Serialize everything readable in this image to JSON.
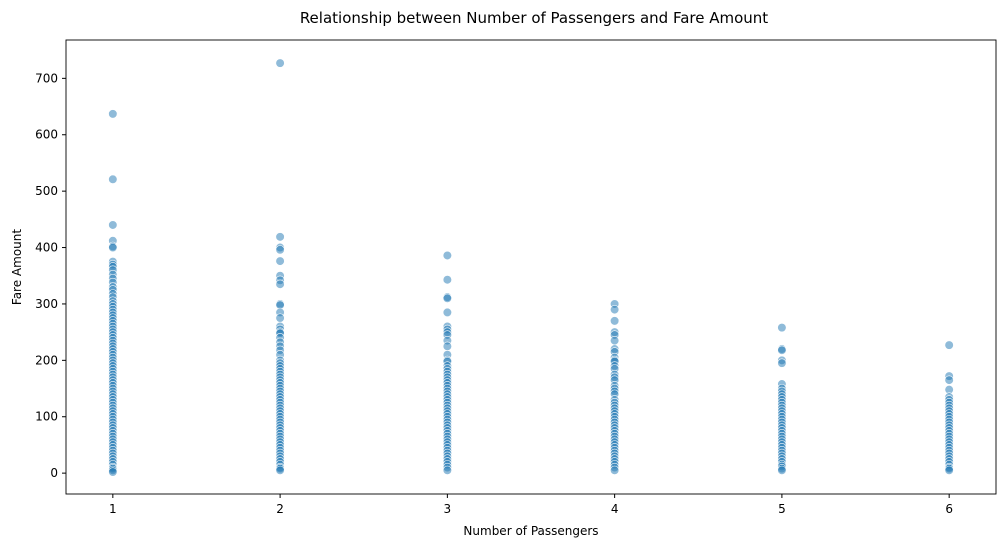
{
  "chart_data": {
    "type": "scatter",
    "title": "Relationship between Number of Passengers and Fare Amount",
    "xlabel": "Number of Passengers",
    "ylabel": "Fare Amount",
    "xlim": [
      0.72,
      6.28
    ],
    "ylim": [
      -37,
      768
    ],
    "x_ticks": [
      1,
      2,
      3,
      4,
      5,
      6
    ],
    "y_ticks": [
      0,
      100,
      200,
      300,
      400,
      500,
      600,
      700
    ],
    "grid": false,
    "point_color": "#1f77b4",
    "point_opacity": 0.5,
    "series": [
      {
        "x": 1,
        "y": [
          637,
          521,
          440,
          412,
          402,
          400,
          375,
          370,
          366,
          360,
          352,
          345,
          338,
          330,
          325,
          318,
          312,
          305,
          300,
          295,
          290,
          285,
          280,
          275,
          270,
          265,
          260,
          255,
          250,
          245,
          240,
          235,
          230,
          225,
          220,
          215,
          210,
          205,
          200,
          195,
          190,
          185,
          180,
          175,
          170,
          165,
          160,
          155,
          150,
          145,
          140,
          135,
          130,
          125,
          120,
          115,
          110,
          105,
          100,
          95,
          90,
          85,
          80,
          75,
          70,
          65,
          60,
          55,
          50,
          45,
          40,
          35,
          30,
          25,
          20,
          15,
          10,
          8,
          5,
          2
        ]
      },
      {
        "x": 2,
        "y": [
          727,
          419,
          400,
          396,
          376,
          350,
          342,
          335,
          300,
          298,
          285,
          275,
          260,
          255,
          250,
          248,
          240,
          232,
          225,
          218,
          210,
          200,
          195,
          190,
          185,
          180,
          175,
          170,
          165,
          160,
          155,
          150,
          145,
          140,
          135,
          130,
          125,
          120,
          115,
          110,
          105,
          100,
          95,
          90,
          85,
          80,
          75,
          70,
          65,
          60,
          55,
          50,
          45,
          40,
          35,
          30,
          25,
          20,
          15,
          10,
          8,
          5
        ]
      },
      {
        "x": 3,
        "y": [
          386,
          343,
          312,
          310,
          285,
          260,
          255,
          250,
          245,
          235,
          225,
          210,
          200,
          198,
          190,
          185,
          180,
          175,
          170,
          165,
          160,
          155,
          150,
          145,
          140,
          135,
          130,
          125,
          120,
          115,
          110,
          105,
          100,
          95,
          90,
          85,
          80,
          75,
          70,
          65,
          60,
          55,
          50,
          45,
          40,
          35,
          30,
          25,
          20,
          15,
          10,
          5
        ]
      },
      {
        "x": 4,
        "y": [
          300,
          290,
          270,
          250,
          245,
          235,
          220,
          215,
          205,
          200,
          198,
          190,
          185,
          175,
          170,
          165,
          155,
          150,
          145,
          140,
          130,
          125,
          120,
          115,
          110,
          105,
          100,
          95,
          90,
          85,
          80,
          75,
          70,
          65,
          60,
          55,
          50,
          45,
          40,
          35,
          30,
          25,
          20,
          15,
          10,
          5
        ]
      },
      {
        "x": 5,
        "y": [
          258,
          220,
          218,
          200,
          195,
          158,
          150,
          145,
          140,
          135,
          130,
          125,
          120,
          115,
          110,
          105,
          100,
          95,
          90,
          85,
          80,
          75,
          70,
          65,
          60,
          55,
          50,
          45,
          40,
          35,
          30,
          25,
          20,
          15,
          12,
          8,
          5
        ]
      },
      {
        "x": 6,
        "y": [
          227,
          172,
          165,
          148,
          135,
          130,
          125,
          120,
          115,
          110,
          105,
          100,
          95,
          90,
          85,
          80,
          75,
          70,
          65,
          60,
          55,
          50,
          45,
          40,
          35,
          30,
          25,
          20,
          15,
          10,
          8,
          5
        ]
      }
    ]
  }
}
